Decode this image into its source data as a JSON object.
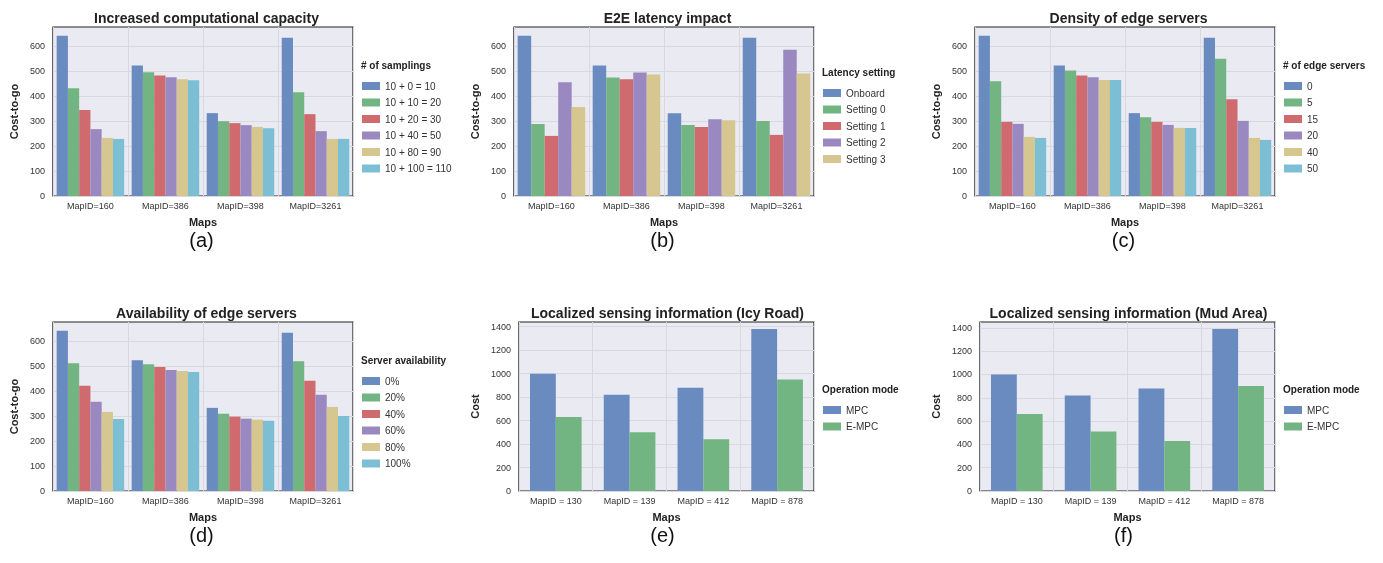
{
  "chart_data": [
    {
      "type": "bar",
      "title": "Increased computational capacity",
      "xlabel": "Maps",
      "ylabel": "Cost-to-go",
      "legend_title": "# of samplings",
      "legend": "right",
      "grid": true,
      "annotations": [
        "(a)"
      ],
      "categories": [
        "MapID=160",
        "MapID=386",
        "MapID=398",
        "MapID=3261"
      ],
      "ylim": [
        0,
        675
      ],
      "yticks": [
        0,
        100,
        200,
        300,
        400,
        500,
        600
      ],
      "series": [
        {
          "name": "10 + 0 = 10",
          "color": "#6a8bc0",
          "values": [
            640,
            521,
            331,
            632
          ]
        },
        {
          "name": "10 + 10 = 20",
          "color": "#72b583",
          "values": [
            430,
            494,
            299,
            414
          ]
        },
        {
          "name": "10 + 20 = 30",
          "color": "#cf6a6e",
          "values": [
            343,
            481,
            291,
            327
          ]
        },
        {
          "name": "10 + 40 = 50",
          "color": "#9a88c0",
          "values": [
            267,
            474,
            283,
            259
          ]
        },
        {
          "name": "10 + 80 = 90",
          "color": "#d6c68f",
          "values": [
            232,
            466,
            276,
            228
          ]
        },
        {
          "name": "10 + 100 = 110",
          "color": "#7cbfd4",
          "values": [
            228,
            462,
            271,
            228
          ]
        }
      ]
    },
    {
      "type": "bar",
      "title": "E2E latency impact",
      "xlabel": "Maps",
      "ylabel": "Cost-to-go",
      "legend_title": "Latency setting",
      "legend": "right",
      "grid": true,
      "annotations": [
        "(b)"
      ],
      "categories": [
        "MapID=160",
        "MapID=386",
        "MapID=398",
        "MapID=3261"
      ],
      "ylim": [
        0,
        675
      ],
      "yticks": [
        0,
        100,
        200,
        300,
        400,
        500,
        600
      ],
      "series": [
        {
          "name": "Onboard",
          "color": "#6a8bc0",
          "values": [
            640,
            521,
            331,
            632
          ]
        },
        {
          "name": "Setting 0",
          "color": "#72b583",
          "values": [
            288,
            473,
            284,
            300
          ]
        },
        {
          "name": "Setting 1",
          "color": "#cf6a6e",
          "values": [
            240,
            466,
            276,
            244
          ]
        },
        {
          "name": "Setting 2",
          "color": "#9a88c0",
          "values": [
            454,
            493,
            307,
            584
          ]
        },
        {
          "name": "Setting 3",
          "color": "#d6c68f",
          "values": [
            355,
            485,
            303,
            489
          ]
        }
      ]
    },
    {
      "type": "bar",
      "title": "Density of edge servers",
      "xlabel": "Maps",
      "ylabel": "Cost-to-go",
      "legend_title": "# of edge servers",
      "legend": "right",
      "grid": true,
      "annotations": [
        "(c)"
      ],
      "categories": [
        "MapID=160",
        "MapID=386",
        "MapID=398",
        "MapID=3261"
      ],
      "ylim": [
        0,
        675
      ],
      "yticks": [
        0,
        100,
        200,
        300,
        400,
        500,
        600
      ],
      "series": [
        {
          "name": "0",
          "color": "#6a8bc0",
          "values": [
            640,
            521,
            331,
            632
          ]
        },
        {
          "name": "5",
          "color": "#72b583",
          "values": [
            458,
            501,
            315,
            548
          ]
        },
        {
          "name": "15",
          "color": "#cf6a6e",
          "values": [
            296,
            481,
            296,
            386
          ]
        },
        {
          "name": "20",
          "color": "#9a88c0",
          "values": [
            288,
            474,
            284,
            300
          ]
        },
        {
          "name": "40",
          "color": "#d6c68f",
          "values": [
            236,
            463,
            272,
            232
          ]
        },
        {
          "name": "50",
          "color": "#7cbfd4",
          "values": [
            232,
            463,
            272,
            224
          ]
        }
      ]
    },
    {
      "type": "bar",
      "title": "Availability of edge servers",
      "xlabel": "Maps",
      "ylabel": "Cost-to-go",
      "legend_title": "Server availability",
      "legend": "right",
      "grid": true,
      "annotations": [
        "(d)"
      ],
      "categories": [
        "MapID=160",
        "MapID=386",
        "MapID=398",
        "MapID=3261"
      ],
      "ylim": [
        0,
        675
      ],
      "yticks": [
        0,
        100,
        200,
        300,
        400,
        500,
        600
      ],
      "series": [
        {
          "name": "0%",
          "color": "#6a8bc0",
          "values": [
            640,
            522,
            332,
            632
          ]
        },
        {
          "name": "20%",
          "color": "#72b583",
          "values": [
            510,
            506,
            309,
            518
          ]
        },
        {
          "name": "40%",
          "color": "#cf6a6e",
          "values": [
            420,
            495,
            297,
            440
          ]
        },
        {
          "name": "60%",
          "color": "#9a88c0",
          "values": [
            356,
            483,
            289,
            384
          ]
        },
        {
          "name": "80%",
          "color": "#d6c68f",
          "values": [
            316,
            479,
            285,
            336
          ]
        },
        {
          "name": "100%",
          "color": "#7cbfd4",
          "values": [
            288,
            475,
            281,
            300
          ]
        }
      ]
    },
    {
      "type": "bar",
      "title": "Localized sensing information (Icy Road)",
      "xlabel": "Maps",
      "ylabel": "Cost",
      "legend_title": "Operation mode",
      "legend": "right",
      "grid": true,
      "annotations": [
        "(e)"
      ],
      "categories": [
        "MapID = 130",
        "MapID = 139",
        "MapID = 412",
        "MapID = 878"
      ],
      "ylim": [
        0,
        1440
      ],
      "yticks": [
        0,
        200,
        400,
        600,
        800,
        1000,
        1200,
        1400
      ],
      "series": [
        {
          "name": "MPC",
          "color": "#6a8bc0",
          "values": [
            1000,
            820,
            880,
            1380
          ]
        },
        {
          "name": "E-MPC",
          "color": "#72b583",
          "values": [
            630,
            500,
            440,
            950
          ]
        }
      ]
    },
    {
      "type": "bar",
      "title": "Localized sensing information (Mud Area)",
      "xlabel": "Maps",
      "ylabel": "Cost",
      "legend_title": "Operation mode",
      "legend": "right",
      "grid": true,
      "annotations": [
        "(f)"
      ],
      "categories": [
        "MapID = 130",
        "MapID = 139",
        "MapID = 412",
        "MapID = 878"
      ],
      "ylim": [
        0,
        1450
      ],
      "yticks": [
        0,
        200,
        400,
        600,
        800,
        1000,
        1200,
        1400
      ],
      "series": [
        {
          "name": "MPC",
          "color": "#6a8bc0",
          "values": [
            1000,
            820,
            880,
            1390
          ]
        },
        {
          "name": "E-MPC",
          "color": "#72b583",
          "values": [
            660,
            510,
            430,
            900
          ]
        }
      ]
    }
  ]
}
